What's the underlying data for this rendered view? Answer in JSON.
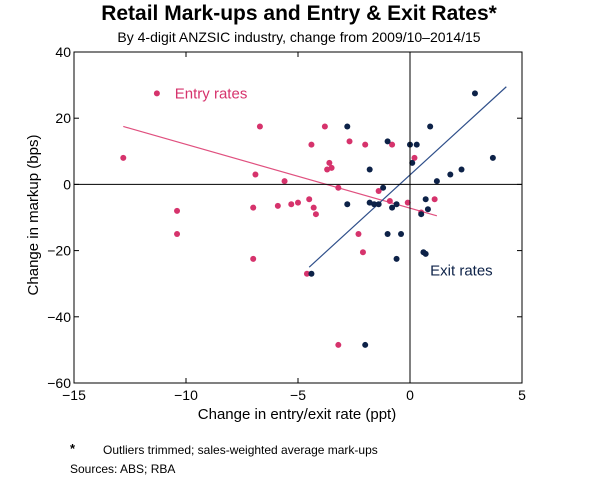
{
  "header": {
    "title": "Retail Mark-ups and Entry & Exit Rates*",
    "subtitle": "By 4-digit ANZSIC industry, change from 2009/10–2014/15"
  },
  "footer": {
    "note_marker": "*",
    "note_text": "Outliers trimmed; sales-weighted average mark-ups",
    "sources": "Sources:  ABS; RBA"
  },
  "colors": {
    "entry": "#d6336c",
    "exit": "#0d2248",
    "entry_line": "#e0507f",
    "exit_line": "#2f4f8a",
    "axis": "#000000"
  },
  "chart_data": {
    "type": "scatter",
    "xlabel": "Change in entry/exit rate (ppt)",
    "ylabel": "Change in markup (bps)",
    "xlim": [
      -15,
      5
    ],
    "ylim": [
      -60,
      40
    ],
    "xticks": [
      -15,
      -10,
      -5,
      0,
      5
    ],
    "yticks": [
      -60,
      -40,
      -20,
      0,
      20,
      40
    ],
    "xtick_labels": [
      "−15",
      "−10",
      "−5",
      "0",
      "5"
    ],
    "ytick_labels": [
      "−60",
      "−40",
      "−20",
      "0",
      "20",
      "40"
    ],
    "grid": false,
    "zero_lines": true,
    "series": [
      {
        "name": "Entry rates",
        "color": "#d6336c",
        "points": [
          [
            -11.3,
            27.5
          ],
          [
            -12.8,
            8
          ],
          [
            -10.4,
            -8
          ],
          [
            -10.4,
            -15
          ],
          [
            -7,
            -7
          ],
          [
            -6.9,
            3
          ],
          [
            -7,
            -22.5
          ],
          [
            -6.7,
            17.5
          ],
          [
            -5.9,
            -6.5
          ],
          [
            -5.6,
            1
          ],
          [
            -5.3,
            -6
          ],
          [
            -5,
            -5.5
          ],
          [
            -4.5,
            -4.5
          ],
          [
            -4.4,
            12
          ],
          [
            -4.3,
            -7
          ],
          [
            -4.2,
            -9
          ],
          [
            -4.6,
            -27
          ],
          [
            -3.8,
            17.5
          ],
          [
            -3.7,
            4.5
          ],
          [
            -3.6,
            6.5
          ],
          [
            -3.5,
            5
          ],
          [
            -3.2,
            -1
          ],
          [
            -3.2,
            -48.5
          ],
          [
            -2.7,
            13
          ],
          [
            -2.3,
            -15
          ],
          [
            -2.1,
            -20.5
          ],
          [
            -2,
            12
          ],
          [
            -1.4,
            -2
          ],
          [
            -0.9,
            -5
          ],
          [
            -0.8,
            12
          ],
          [
            -0.1,
            -5.5
          ],
          [
            0.2,
            8
          ],
          [
            0.5,
            -8.5
          ],
          [
            1.1,
            -4.5
          ]
        ]
      },
      {
        "name": "Exit rates",
        "color": "#0d2248",
        "points": [
          [
            -4.4,
            -27
          ],
          [
            -2.8,
            17.5
          ],
          [
            -2.8,
            -6
          ],
          [
            -2,
            -48.5
          ],
          [
            -1.8,
            4.5
          ],
          [
            -1.8,
            -5.5
          ],
          [
            -1.6,
            -6
          ],
          [
            -1.4,
            -6
          ],
          [
            -1.2,
            -1
          ],
          [
            -1,
            -15
          ],
          [
            -1,
            13
          ],
          [
            -0.8,
            -7
          ],
          [
            -0.6,
            -6
          ],
          [
            -0.6,
            -22.5
          ],
          [
            -0.4,
            -15
          ],
          [
            0,
            12
          ],
          [
            0.1,
            6.5
          ],
          [
            0.3,
            12
          ],
          [
            0.5,
            -9
          ],
          [
            0.6,
            -20.5
          ],
          [
            0.7,
            -4.5
          ],
          [
            0.7,
            -21
          ],
          [
            0.8,
            -7.5
          ],
          [
            0.9,
            17.5
          ],
          [
            1.2,
            1
          ],
          [
            1.8,
            3
          ],
          [
            2.3,
            4.5
          ],
          [
            2.9,
            27.5
          ],
          [
            3.7,
            8
          ]
        ]
      }
    ],
    "trendlines": [
      {
        "name": "Entry rates",
        "from": [
          -12.8,
          17.5
        ],
        "to": [
          1.2,
          -9.5
        ],
        "color": "#e0507f"
      },
      {
        "name": "Exit rates",
        "from": [
          -4.5,
          -25
        ],
        "to": [
          4.3,
          29.5
        ],
        "color": "#2f4f8a"
      }
    ],
    "annotations": [
      {
        "text": "Entry rates",
        "x": -10.5,
        "y": 27.5,
        "color": "#d6336c"
      },
      {
        "text": "Exit rates",
        "x": 0.9,
        "y": -26,
        "color": "#0d2248"
      }
    ]
  }
}
